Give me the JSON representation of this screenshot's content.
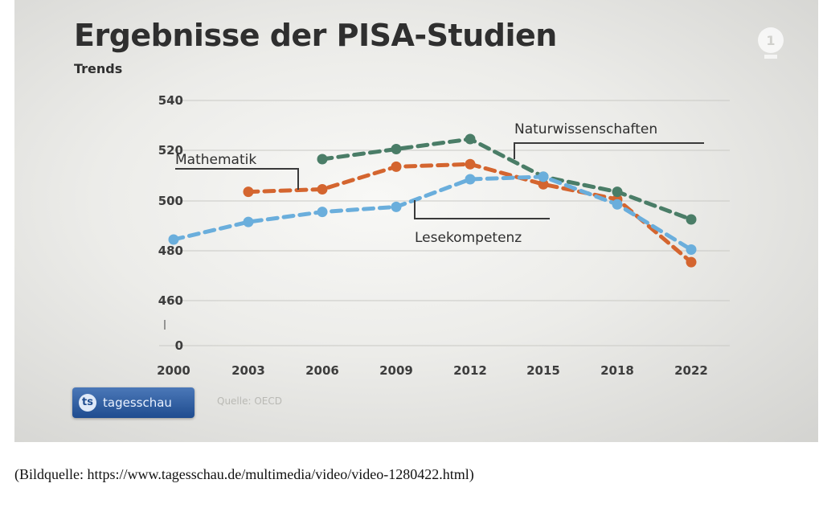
{
  "header": {
    "title": "Ergebnisse der PISA-Studien",
    "subtitle": "Trends"
  },
  "brand": {
    "badge_label": "tagesschau",
    "source": "Quelle: OECD"
  },
  "caption": "(Bildquelle: https://www.tagesschau.de/multimedia/video/video-1280422.html)",
  "chart_data": {
    "type": "line",
    "x": [
      2000,
      2003,
      2006,
      2009,
      2012,
      2015,
      2018,
      2022
    ],
    "x_tick_labels": [
      "2000",
      "2003",
      "2006",
      "2009",
      "2012",
      "2015",
      "2018",
      "2022"
    ],
    "y_tick_labels": [
      "540",
      "520",
      "500",
      "480",
      "460",
      "0"
    ],
    "ylim": [
      460,
      540
    ],
    "axis_break": true,
    "grid": true,
    "series": [
      {
        "name": "Mathematik",
        "color": "#d4652f",
        "values": [
          null,
          503,
          504,
          513,
          514,
          506,
          500,
          475
        ]
      },
      {
        "name": "Naturwissenschaften",
        "color": "#4a7d67",
        "values": [
          null,
          null,
          516,
          520,
          524,
          509,
          503,
          492
        ]
      },
      {
        "name": "Lesekompetenz",
        "color": "#6aaedc",
        "values": [
          484,
          491,
          495,
          497,
          508,
          509,
          498,
          480
        ]
      }
    ]
  }
}
